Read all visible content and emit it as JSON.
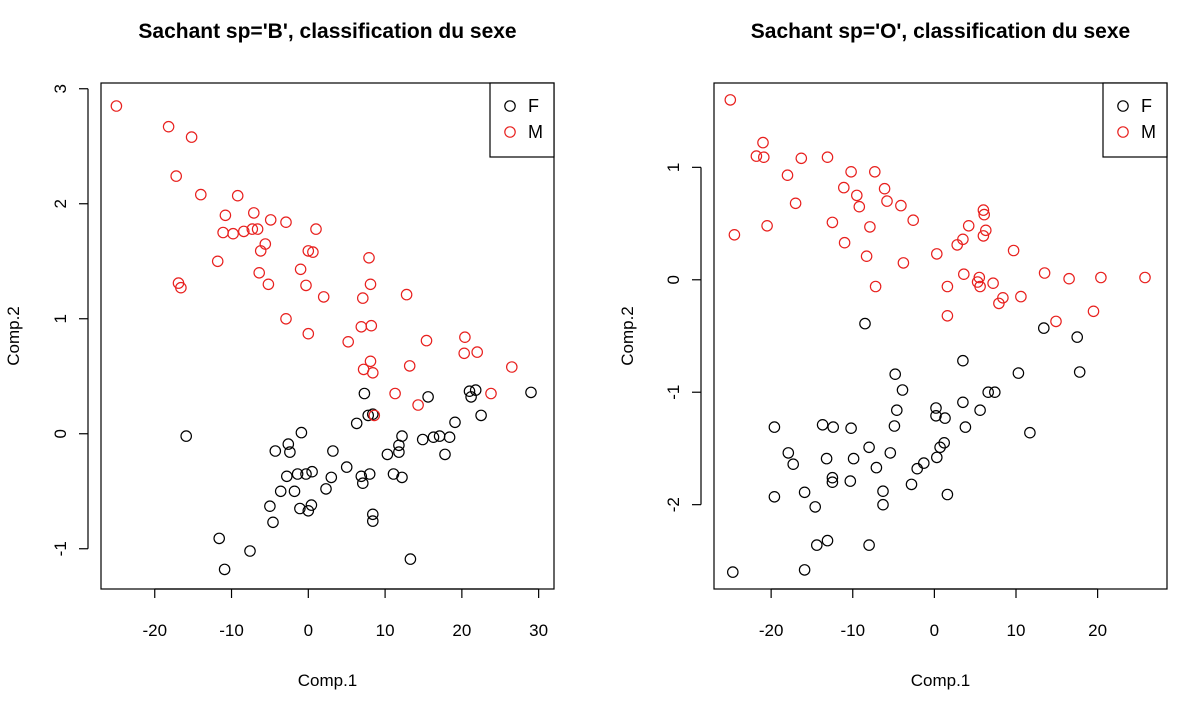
{
  "chart_data": [
    {
      "type": "scatter",
      "title": "Sachant sp='B', classification du sexe",
      "xlabel": "Comp.1",
      "ylabel": "Comp.2",
      "xlim": [
        -27,
        32
      ],
      "ylim": [
        -1.35,
        3.05
      ],
      "xticks": [
        -20,
        -10,
        0,
        10,
        20,
        30
      ],
      "yticks": [
        -1,
        0,
        1,
        2,
        3
      ],
      "legend_position": "top-right",
      "series": [
        {
          "name": "F",
          "color": "#000000",
          "points": [
            [
              -15.9,
              -0.02
            ],
            [
              -11.6,
              -0.91
            ],
            [
              -10.9,
              -1.18
            ],
            [
              -7.6,
              -1.02
            ],
            [
              -5.0,
              -0.63
            ],
            [
              -4.6,
              -0.77
            ],
            [
              -4.3,
              -0.15
            ],
            [
              -3.6,
              -0.5
            ],
            [
              -2.8,
              -0.37
            ],
            [
              -2.6,
              -0.09
            ],
            [
              -2.4,
              -0.16
            ],
            [
              -1.8,
              -0.5
            ],
            [
              -1.4,
              -0.35
            ],
            [
              -1.1,
              -0.65
            ],
            [
              -0.9,
              0.01
            ],
            [
              -0.3,
              -0.35
            ],
            [
              0.0,
              -0.67
            ],
            [
              0.4,
              -0.62
            ],
            [
              0.5,
              -0.33
            ],
            [
              2.3,
              -0.48
            ],
            [
              3.0,
              -0.38
            ],
            [
              3.2,
              -0.15
            ],
            [
              5.0,
              -0.29
            ],
            [
              6.3,
              0.09
            ],
            [
              6.9,
              -0.37
            ],
            [
              7.1,
              -0.43
            ],
            [
              7.3,
              0.35
            ],
            [
              7.8,
              0.16
            ],
            [
              8.0,
              -0.35
            ],
            [
              8.4,
              -0.7
            ],
            [
              8.4,
              -0.76
            ],
            [
              8.4,
              0.17
            ],
            [
              10.3,
              -0.18
            ],
            [
              11.1,
              -0.35
            ],
            [
              11.8,
              -0.16
            ],
            [
              11.8,
              -0.1
            ],
            [
              12.2,
              -0.38
            ],
            [
              12.2,
              -0.02
            ],
            [
              13.3,
              -1.09
            ],
            [
              14.9,
              -0.05
            ],
            [
              15.6,
              0.32
            ],
            [
              16.3,
              -0.03
            ],
            [
              17.1,
              -0.02
            ],
            [
              17.8,
              -0.18
            ],
            [
              18.4,
              -0.03
            ],
            [
              19.1,
              0.1
            ],
            [
              21.0,
              0.37
            ],
            [
              21.2,
              0.32
            ],
            [
              21.8,
              0.38
            ],
            [
              22.5,
              0.16
            ],
            [
              29.0,
              0.36
            ]
          ]
        },
        {
          "name": "M",
          "color": "#e8201e",
          "points": [
            [
              -25.0,
              2.85
            ],
            [
              -18.2,
              2.67
            ],
            [
              -17.2,
              2.24
            ],
            [
              -16.9,
              1.31
            ],
            [
              -16.6,
              1.27
            ],
            [
              -15.2,
              2.58
            ],
            [
              -14.0,
              2.08
            ],
            [
              -11.8,
              1.5
            ],
            [
              -11.1,
              1.75
            ],
            [
              -10.8,
              1.9
            ],
            [
              -9.8,
              1.74
            ],
            [
              -9.2,
              2.07
            ],
            [
              -8.4,
              1.76
            ],
            [
              -7.3,
              1.78
            ],
            [
              -7.1,
              1.92
            ],
            [
              -6.6,
              1.78
            ],
            [
              -6.4,
              1.4
            ],
            [
              -6.2,
              1.59
            ],
            [
              -5.6,
              1.65
            ],
            [
              -5.2,
              1.3
            ],
            [
              -4.9,
              1.86
            ],
            [
              -2.9,
              1.84
            ],
            [
              -2.9,
              1.0
            ],
            [
              -1.0,
              1.43
            ],
            [
              -0.3,
              1.29
            ],
            [
              0.0,
              0.87
            ],
            [
              0.0,
              1.59
            ],
            [
              0.6,
              1.58
            ],
            [
              1.0,
              1.78
            ],
            [
              2.0,
              1.19
            ],
            [
              5.2,
              0.8
            ],
            [
              6.9,
              0.93
            ],
            [
              7.1,
              1.18
            ],
            [
              7.2,
              0.56
            ],
            [
              7.9,
              1.53
            ],
            [
              8.1,
              1.3
            ],
            [
              8.1,
              0.63
            ],
            [
              8.2,
              0.94
            ],
            [
              8.4,
              0.53
            ],
            [
              8.6,
              0.16
            ],
            [
              11.3,
              0.35
            ],
            [
              12.8,
              1.21
            ],
            [
              13.2,
              0.59
            ],
            [
              14.3,
              0.25
            ],
            [
              15.4,
              0.81
            ],
            [
              20.3,
              0.7
            ],
            [
              20.4,
              0.84
            ],
            [
              22.0,
              0.71
            ],
            [
              23.8,
              0.35
            ],
            [
              26.5,
              0.58
            ]
          ]
        }
      ]
    },
    {
      "type": "scatter",
      "title": "Sachant sp='O', classification du sexe",
      "xlabel": "Comp.1",
      "ylabel": "Comp.2",
      "xlim": [
        -27,
        28.5
      ],
      "ylim": [
        -2.75,
        1.75
      ],
      "xticks": [
        -20,
        -10,
        0,
        10,
        20
      ],
      "yticks": [
        -2,
        -1,
        0,
        1
      ],
      "legend_position": "top-right",
      "series": [
        {
          "name": "F",
          "color": "#000000",
          "points": [
            [
              -24.7,
              -2.6
            ],
            [
              -19.6,
              -1.31
            ],
            [
              -19.6,
              -1.93
            ],
            [
              -17.9,
              -1.54
            ],
            [
              -17.3,
              -1.64
            ],
            [
              -15.9,
              -1.89
            ],
            [
              -15.9,
              -2.58
            ],
            [
              -14.6,
              -2.02
            ],
            [
              -14.4,
              -2.36
            ],
            [
              -13.7,
              -1.29
            ],
            [
              -13.2,
              -1.59
            ],
            [
              -13.1,
              -2.32
            ],
            [
              -12.5,
              -1.8
            ],
            [
              -12.5,
              -1.76
            ],
            [
              -12.4,
              -1.31
            ],
            [
              -10.3,
              -1.79
            ],
            [
              -10.2,
              -1.32
            ],
            [
              -9.9,
              -1.59
            ],
            [
              -8.5,
              -0.39
            ],
            [
              -8.0,
              -2.36
            ],
            [
              -8.0,
              -1.49
            ],
            [
              -7.1,
              -1.67
            ],
            [
              -6.3,
              -1.88
            ],
            [
              -6.3,
              -2.0
            ],
            [
              -5.4,
              -1.54
            ],
            [
              -4.9,
              -1.3
            ],
            [
              -4.8,
              -0.84
            ],
            [
              -4.6,
              -1.16
            ],
            [
              -3.9,
              -0.98
            ],
            [
              -2.8,
              -1.82
            ],
            [
              -2.1,
              -1.68
            ],
            [
              -1.3,
              -1.63
            ],
            [
              0.2,
              -1.14
            ],
            [
              0.2,
              -1.21
            ],
            [
              0.3,
              -1.58
            ],
            [
              0.7,
              -1.49
            ],
            [
              1.2,
              -1.45
            ],
            [
              1.3,
              -1.23
            ],
            [
              1.6,
              -1.91
            ],
            [
              3.5,
              -1.09
            ],
            [
              3.5,
              -0.72
            ],
            [
              3.8,
              -1.31
            ],
            [
              5.6,
              -1.16
            ],
            [
              6.6,
              -1.0
            ],
            [
              7.4,
              -1.0
            ],
            [
              10.3,
              -0.83
            ],
            [
              11.7,
              -1.36
            ],
            [
              13.4,
              -0.43
            ],
            [
              17.5,
              -0.51
            ],
            [
              17.8,
              -0.82
            ]
          ]
        },
        {
          "name": "M",
          "color": "#e8201e",
          "points": [
            [
              -25.0,
              1.6
            ],
            [
              -24.5,
              0.4
            ],
            [
              -21.8,
              1.1
            ],
            [
              -21.0,
              1.22
            ],
            [
              -20.9,
              1.09
            ],
            [
              -20.5,
              0.48
            ],
            [
              -18.0,
              0.93
            ],
            [
              -17.0,
              0.68
            ],
            [
              -16.3,
              1.08
            ],
            [
              -12.5,
              0.51
            ],
            [
              -13.1,
              1.09
            ],
            [
              -11.1,
              0.82
            ],
            [
              -11.0,
              0.33
            ],
            [
              -10.2,
              0.96
            ],
            [
              -9.5,
              0.75
            ],
            [
              -9.2,
              0.65
            ],
            [
              -8.3,
              0.21
            ],
            [
              -7.9,
              0.47
            ],
            [
              -7.3,
              0.96
            ],
            [
              -7.2,
              -0.06
            ],
            [
              -6.1,
              0.81
            ],
            [
              -5.8,
              0.7
            ],
            [
              -4.1,
              0.66
            ],
            [
              -3.8,
              0.15
            ],
            [
              -2.6,
              0.53
            ],
            [
              0.3,
              0.23
            ],
            [
              1.6,
              -0.06
            ],
            [
              1.6,
              -0.32
            ],
            [
              2.8,
              0.31
            ],
            [
              3.5,
              0.36
            ],
            [
              3.6,
              0.05
            ],
            [
              4.2,
              0.48
            ],
            [
              5.3,
              -0.02
            ],
            [
              5.5,
              0.02
            ],
            [
              5.6,
              -0.06
            ],
            [
              6.0,
              0.62
            ],
            [
              6.0,
              0.39
            ],
            [
              6.1,
              0.58
            ],
            [
              6.3,
              0.44
            ],
            [
              7.2,
              -0.03
            ],
            [
              7.9,
              -0.21
            ],
            [
              8.4,
              -0.16
            ],
            [
              9.7,
              0.26
            ],
            [
              10.6,
              -0.15
            ],
            [
              13.5,
              0.06
            ],
            [
              14.9,
              -0.37
            ],
            [
              16.5,
              0.01
            ],
            [
              19.5,
              -0.28
            ],
            [
              20.4,
              0.02
            ],
            [
              25.8,
              0.02
            ]
          ]
        }
      ]
    }
  ]
}
